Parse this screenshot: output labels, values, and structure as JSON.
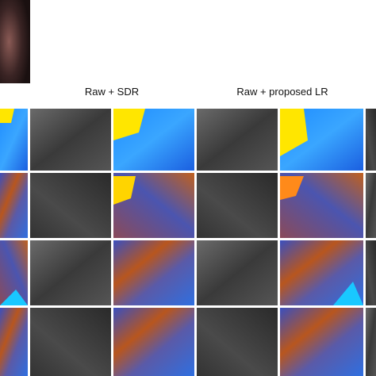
{
  "figure": {
    "column_labels": [
      "Raw + SDR",
      "Raw + proposed LR"
    ]
  }
}
